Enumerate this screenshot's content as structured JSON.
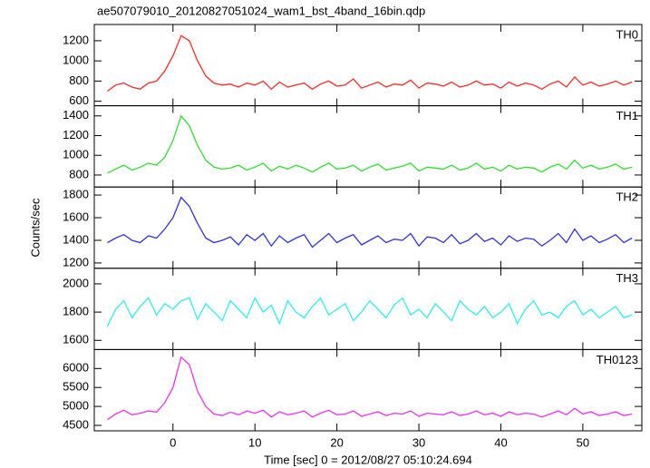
{
  "chart_data": {
    "type": "line",
    "title": "ae507079010_20120827051024_wam1_bst_4band_16bin.qdp",
    "xlabel": "Time [sec] 0 = 2012/08/27 05:10:24.694",
    "ylabel": "Counts/sec",
    "xlim": [
      -9.6,
      57.2
    ],
    "xticks": [
      0,
      10,
      20,
      30,
      40,
      50
    ],
    "x": [
      -8,
      -7,
      -6,
      -5,
      -4,
      -3,
      -2,
      -1,
      0,
      1,
      2,
      3,
      4,
      5,
      6,
      7,
      8,
      9,
      10,
      11,
      12,
      13,
      14,
      15,
      16,
      17,
      18,
      19,
      20,
      21,
      22,
      23,
      24,
      25,
      26,
      27,
      28,
      29,
      30,
      31,
      32,
      33,
      34,
      35,
      36,
      37,
      38,
      39,
      40,
      41,
      42,
      43,
      44,
      45,
      46,
      47,
      48,
      49,
      50,
      51,
      52,
      53,
      54,
      55,
      56
    ],
    "series": [
      {
        "name": "TH0",
        "color": "#ff2a2a",
        "ylim": [
          555,
          1361
        ],
        "yticks": [
          600,
          800,
          1000,
          1200
        ],
        "values": [
          700,
          760,
          780,
          740,
          720,
          780,
          800,
          900,
          1050,
          1250,
          1200,
          1000,
          850,
          780,
          760,
          770,
          740,
          780,
          760,
          800,
          720,
          790,
          740,
          760,
          780,
          720,
          770,
          800,
          750,
          760,
          820,
          730,
          760,
          790,
          740,
          770,
          760,
          810,
          730,
          780,
          770,
          750,
          790,
          740,
          760,
          800,
          760,
          770,
          730,
          790,
          750,
          780,
          760,
          720,
          770,
          800,
          740,
          840,
          760,
          790,
          750,
          770,
          800,
          760,
          790
        ]
      },
      {
        "name": "TH1",
        "color": "#2ee02e",
        "ylim": [
          678,
          1503
        ],
        "yticks": [
          800,
          1000,
          1200,
          1400
        ],
        "values": [
          820,
          860,
          900,
          850,
          880,
          920,
          900,
          980,
          1150,
          1400,
          1300,
          1100,
          950,
          880,
          860,
          870,
          900,
          850,
          880,
          920,
          840,
          890,
          860,
          900,
          870,
          830,
          880,
          920,
          860,
          870,
          900,
          840,
          880,
          910,
          850,
          870,
          890,
          920,
          840,
          880,
          870,
          860,
          900,
          850,
          870,
          920,
          860,
          880,
          840,
          900,
          860,
          880,
          870,
          830,
          880,
          910,
          860,
          950,
          870,
          900,
          860,
          880,
          910,
          860,
          880
        ]
      },
      {
        "name": "TH2",
        "color": "#3232e0",
        "ylim": [
          1153,
          1871
        ],
        "yticks": [
          1200,
          1400,
          1600,
          1800
        ],
        "values": [
          1380,
          1420,
          1450,
          1400,
          1380,
          1440,
          1420,
          1500,
          1600,
          1780,
          1700,
          1550,
          1420,
          1380,
          1400,
          1430,
          1360,
          1450,
          1400,
          1460,
          1350,
          1440,
          1380,
          1420,
          1450,
          1340,
          1400,
          1460,
          1380,
          1420,
          1450,
          1360,
          1400,
          1440,
          1380,
          1410,
          1400,
          1460,
          1350,
          1430,
          1420,
          1380,
          1450,
          1370,
          1400,
          1460,
          1390,
          1420,
          1360,
          1440,
          1390,
          1420,
          1410,
          1350,
          1400,
          1460,
          1380,
          1500,
          1400,
          1440,
          1380,
          1410,
          1450,
          1380,
          1420
        ]
      },
      {
        "name": "TH3",
        "color": "#2ef0f0",
        "ylim": [
          1535,
          2110
        ],
        "yticks": [
          1600,
          1800,
          2000
        ],
        "values": [
          1700,
          1820,
          1880,
          1760,
          1840,
          1900,
          1780,
          1860,
          1820,
          1880,
          1900,
          1750,
          1860,
          1800,
          1740,
          1880,
          1820,
          1760,
          1900,
          1800,
          1850,
          1720,
          1880,
          1800,
          1760,
          1840,
          1900,
          1780,
          1820,
          1860,
          1740,
          1800,
          1880,
          1820,
          1760,
          1850,
          1900,
          1780,
          1820,
          1760,
          1860,
          1800,
          1740,
          1880,
          1820,
          1780,
          1840,
          1760,
          1800,
          1860,
          1720,
          1820,
          1880,
          1780,
          1800,
          1760,
          1840,
          1880,
          1780,
          1820,
          1760,
          1800,
          1840,
          1760,
          1780
        ]
      },
      {
        "name": "TH0123",
        "color": "#f030f0",
        "ylim": [
          4357,
          6500
        ],
        "yticks": [
          4500,
          5000,
          5500,
          6000
        ],
        "values": [
          4650,
          4800,
          4900,
          4780,
          4820,
          4880,
          4850,
          5100,
          5500,
          6300,
          6100,
          5400,
          5000,
          4800,
          4760,
          4850,
          4780,
          4880,
          4820,
          4900,
          4720,
          4860,
          4780,
          4820,
          4880,
          4720,
          4820,
          4900,
          4780,
          4800,
          4880,
          4740,
          4800,
          4860,
          4760,
          4820,
          4800,
          4880,
          4740,
          4820,
          4800,
          4780,
          4860,
          4760,
          4800,
          4880,
          4780,
          4820,
          4740,
          4860,
          4780,
          4820,
          4800,
          4720,
          4800,
          4880,
          4780,
          4950,
          4800,
          4860,
          4760,
          4800,
          4860,
          4760,
          4800
        ]
      }
    ]
  }
}
